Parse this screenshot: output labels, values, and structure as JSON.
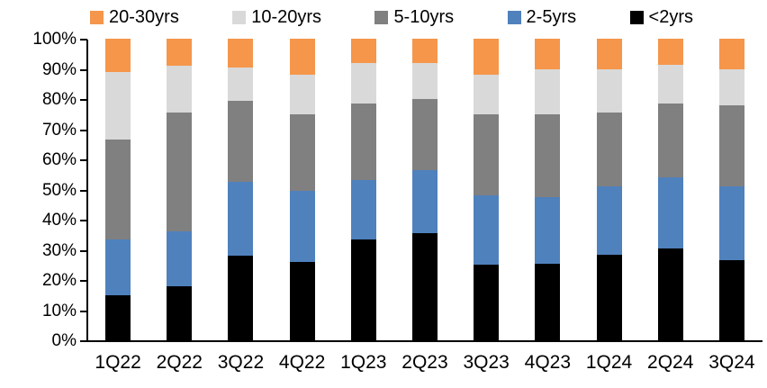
{
  "legend": {
    "items": [
      {
        "label": "20-30yrs",
        "color": "#F5964B"
      },
      {
        "label": "10-20yrs",
        "color": "#D9D9D9"
      },
      {
        "label": "5-10yrs",
        "color": "#808080"
      },
      {
        "label": "2-5yrs",
        "color": "#4F81BD"
      },
      {
        "label": "<2yrs",
        "color": "#000000"
      }
    ]
  },
  "chart_data": {
    "type": "bar",
    "stacked": true,
    "unit": "percent",
    "title": "",
    "xlabel": "",
    "ylabel": "",
    "grid": false,
    "legend_position": "top",
    "ylim": [
      0,
      100
    ],
    "yticks": [
      "0%",
      "10%",
      "20%",
      "30%",
      "40%",
      "50%",
      "60%",
      "70%",
      "80%",
      "90%",
      "100%"
    ],
    "categories": [
      "1Q22",
      "2Q22",
      "3Q22",
      "4Q22",
      "1Q23",
      "2Q23",
      "3Q23",
      "4Q23",
      "1Q24",
      "2Q24",
      "3Q24"
    ],
    "series": [
      {
        "name": "<2yrs",
        "color": "#000000",
        "values": [
          15,
          18,
          28,
          26,
          33.5,
          35.5,
          25,
          25.5,
          28.5,
          30.5,
          26.5
        ]
      },
      {
        "name": "2-5yrs",
        "color": "#4F81BD",
        "values": [
          18.5,
          18,
          24.5,
          23.5,
          19.5,
          21,
          23,
          22,
          22.5,
          23.5,
          24.5
        ]
      },
      {
        "name": "5-10yrs",
        "color": "#808080",
        "values": [
          33,
          39.5,
          27,
          25.5,
          25.5,
          23.5,
          27,
          27.5,
          24.5,
          24.5,
          27
        ]
      },
      {
        "name": "10-20yrs",
        "color": "#D9D9D9",
        "values": [
          22.5,
          15.5,
          11,
          13,
          13.5,
          12,
          13,
          15,
          14.5,
          13,
          12
        ]
      },
      {
        "name": "20-30yrs",
        "color": "#F5964B",
        "values": [
          11,
          9,
          9.5,
          12,
          8,
          8,
          12,
          10,
          10,
          8.5,
          10
        ]
      }
    ]
  }
}
